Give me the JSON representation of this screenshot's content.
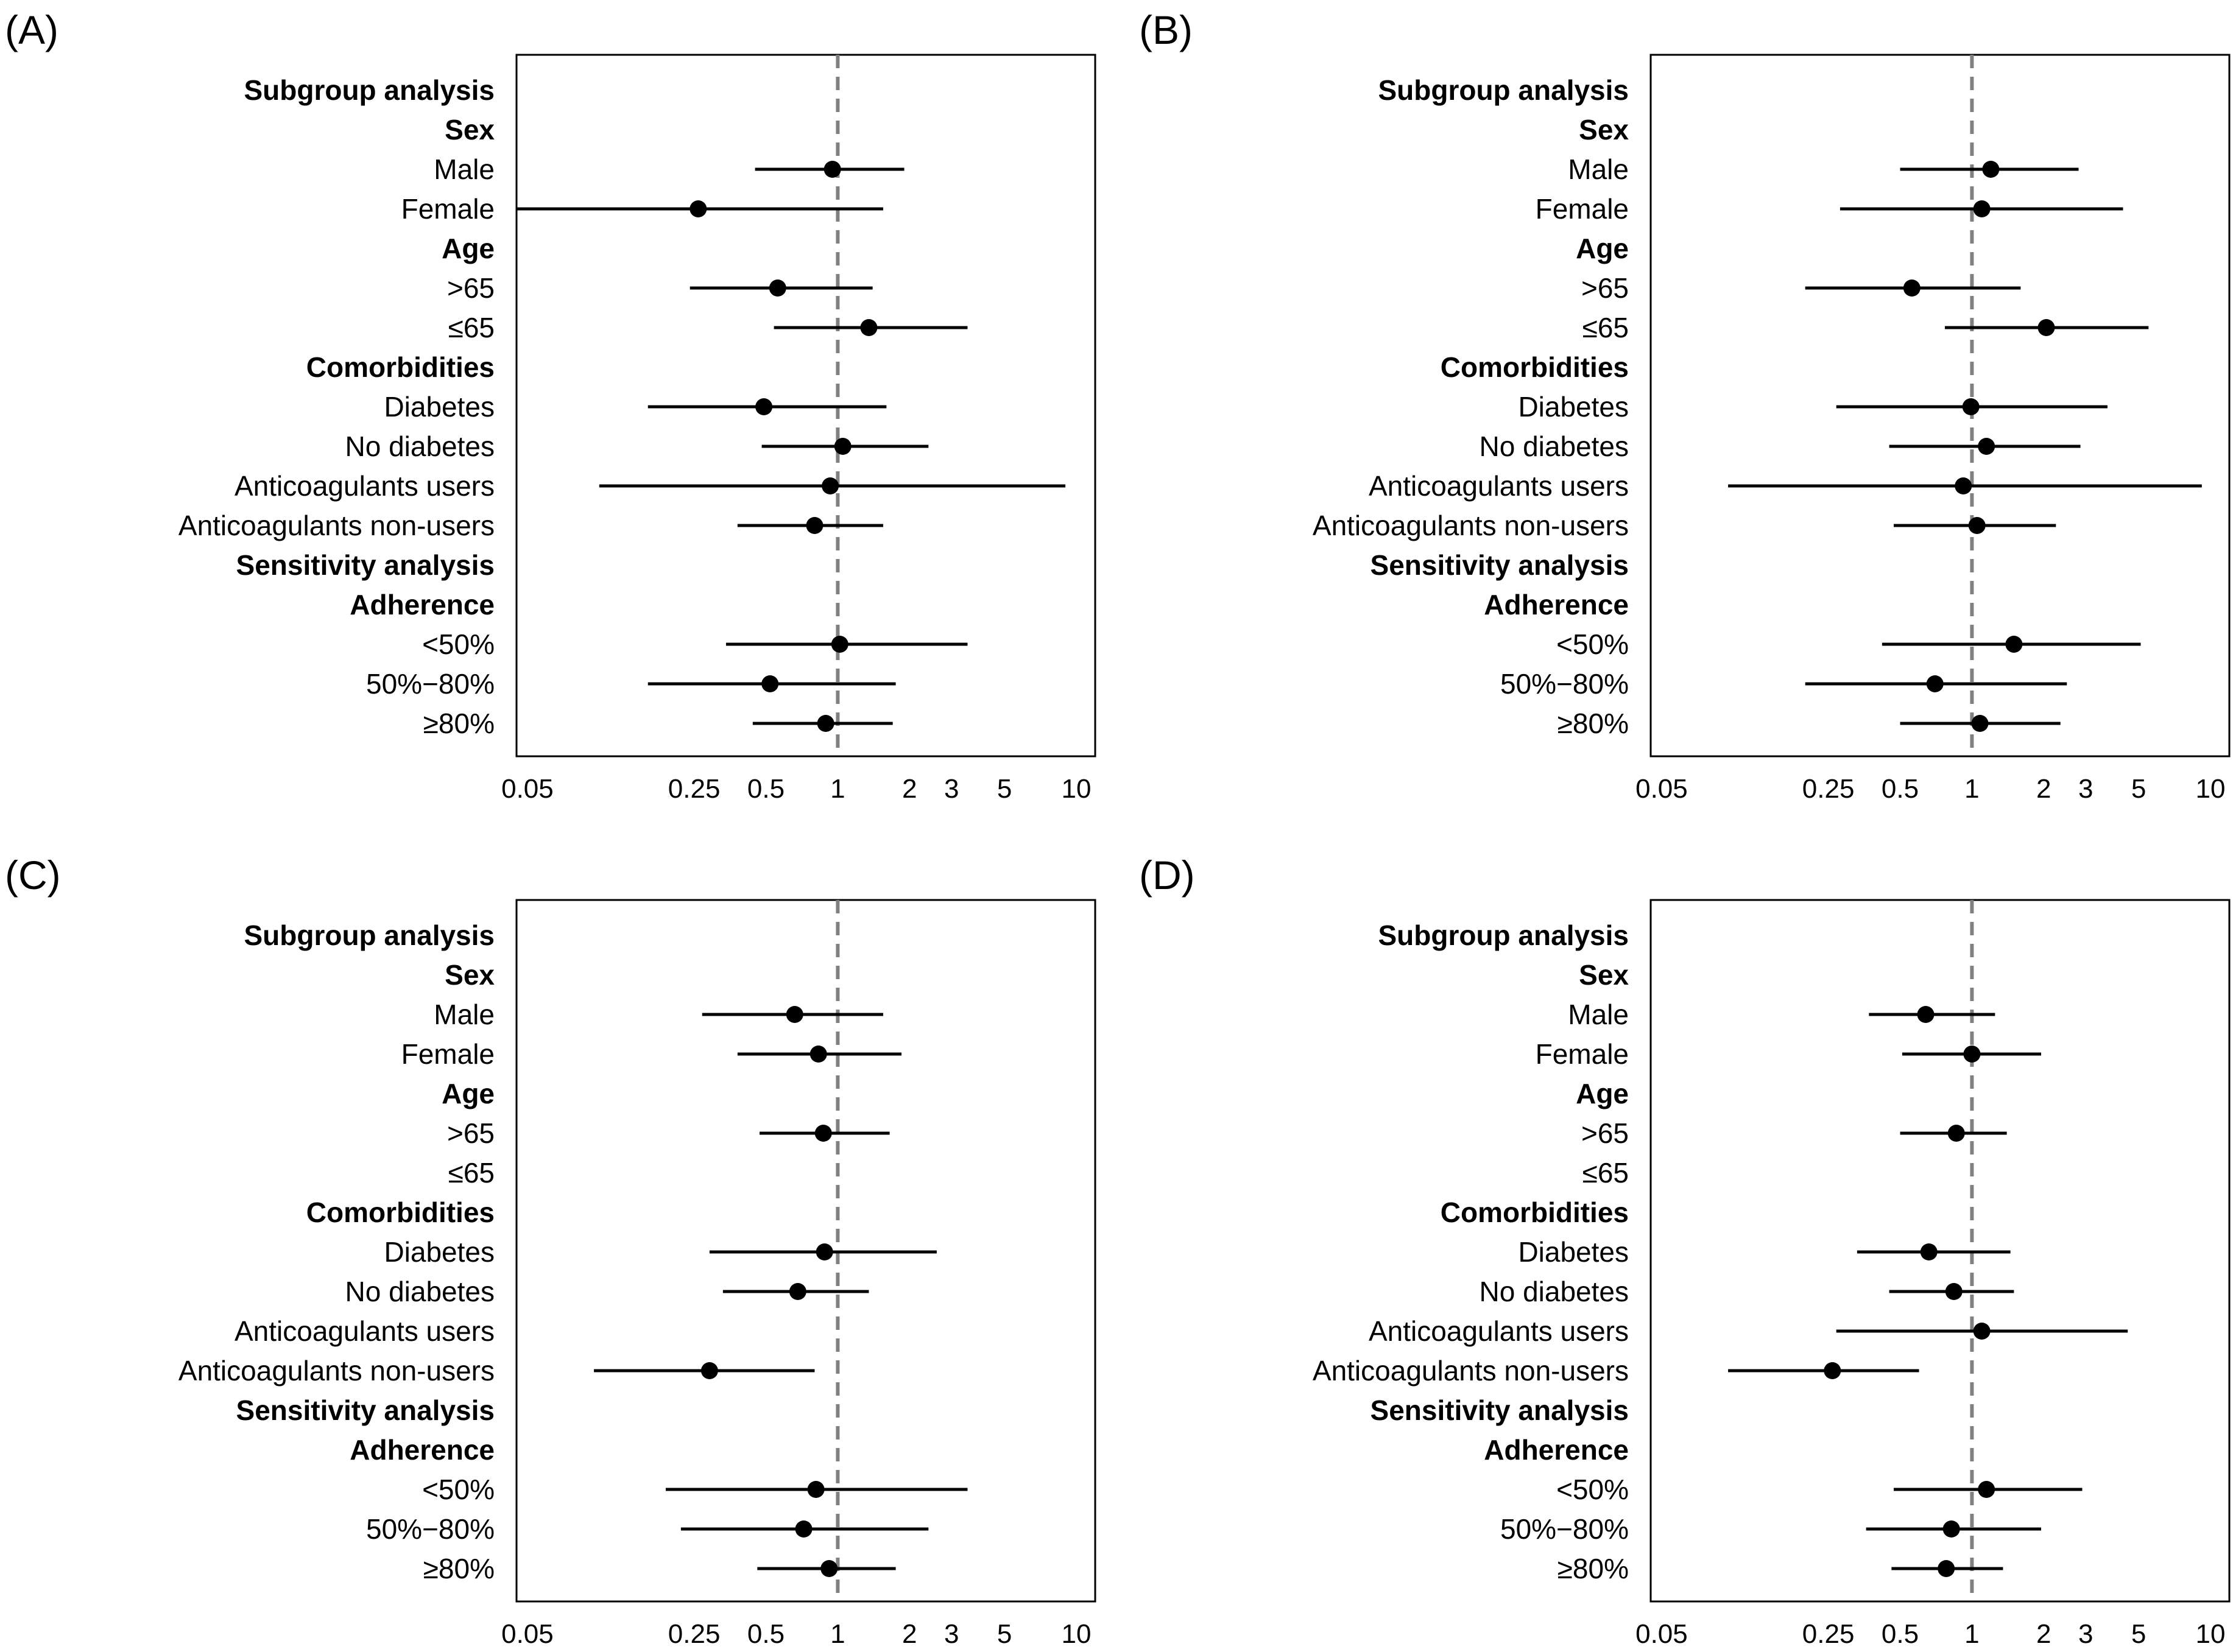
{
  "figure": {
    "row_labels": [
      {
        "text": "Subgroup analysis",
        "bold": true
      },
      {
        "text": "Sex",
        "bold": true
      },
      {
        "text": "Male",
        "bold": false
      },
      {
        "text": "Female",
        "bold": false
      },
      {
        "text": "Age",
        "bold": true
      },
      {
        "text": ">65",
        "bold": false
      },
      {
        "text": "≤65",
        "bold": false
      },
      {
        "text": "Comorbidities",
        "bold": true
      },
      {
        "text": "Diabetes",
        "bold": false
      },
      {
        "text": "No diabetes",
        "bold": false
      },
      {
        "text": "Anticoagulants users",
        "bold": false
      },
      {
        "text": "Anticoagulants non-users",
        "bold": false
      },
      {
        "text": "Sensitivity analysis",
        "bold": true
      },
      {
        "text": "Adherence",
        "bold": true
      },
      {
        "text": "<50%",
        "bold": false
      },
      {
        "text": "50%−80%",
        "bold": false
      },
      {
        "text": "≥80%",
        "bold": false
      }
    ],
    "x_ticks": [
      {
        "value": 0.05,
        "label": "0.05"
      },
      {
        "value": 0.25,
        "label": "0.25"
      },
      {
        "value": 0.5,
        "label": "0.5"
      },
      {
        "value": 1,
        "label": "1"
      },
      {
        "value": 2,
        "label": "2"
      },
      {
        "value": 3,
        "label": "3"
      },
      {
        "value": 5,
        "label": "5"
      },
      {
        "value": 10,
        "label": "10"
      }
    ],
    "colors": {
      "marker": "#000000",
      "ref_line": "#808080",
      "frame": "#000000"
    }
  },
  "chart_data": [
    {
      "type": "forest",
      "panel": "(A)",
      "xscale": "log",
      "xlim": [
        0.045,
        12
      ],
      "reference": 1,
      "points": [
        {
          "row": 2,
          "est": 0.95,
          "lo": 0.45,
          "hi": 1.9
        },
        {
          "row": 3,
          "est": 0.26,
          "lo": 0.045,
          "hi": 1.55
        },
        {
          "row": 5,
          "est": 0.56,
          "lo": 0.24,
          "hi": 1.4
        },
        {
          "row": 6,
          "est": 1.35,
          "lo": 0.54,
          "hi": 3.5
        },
        {
          "row": 8,
          "est": 0.49,
          "lo": 0.16,
          "hi": 1.6
        },
        {
          "row": 9,
          "est": 1.05,
          "lo": 0.48,
          "hi": 2.4
        },
        {
          "row": 10,
          "est": 0.93,
          "lo": 0.1,
          "hi": 9.0
        },
        {
          "row": 11,
          "est": 0.8,
          "lo": 0.38,
          "hi": 1.55
        },
        {
          "row": 14,
          "est": 1.02,
          "lo": 0.34,
          "hi": 3.5
        },
        {
          "row": 15,
          "est": 0.52,
          "lo": 0.16,
          "hi": 1.75
        },
        {
          "row": 16,
          "est": 0.89,
          "lo": 0.44,
          "hi": 1.7
        }
      ]
    },
    {
      "type": "forest",
      "panel": "(B)",
      "xscale": "log",
      "xlim": [
        0.045,
        12
      ],
      "reference": 1,
      "points": [
        {
          "row": 2,
          "est": 1.2,
          "lo": 0.5,
          "hi": 2.8
        },
        {
          "row": 3,
          "est": 1.1,
          "lo": 0.28,
          "hi": 4.3
        },
        {
          "row": 5,
          "est": 0.56,
          "lo": 0.2,
          "hi": 1.6
        },
        {
          "row": 6,
          "est": 2.05,
          "lo": 0.77,
          "hi": 5.5
        },
        {
          "row": 8,
          "est": 0.99,
          "lo": 0.27,
          "hi": 3.7
        },
        {
          "row": 9,
          "est": 1.15,
          "lo": 0.45,
          "hi": 2.85
        },
        {
          "row": 10,
          "est": 0.92,
          "lo": 0.095,
          "hi": 9.2
        },
        {
          "row": 11,
          "est": 1.05,
          "lo": 0.47,
          "hi": 2.25
        },
        {
          "row": 14,
          "est": 1.5,
          "lo": 0.42,
          "hi": 5.1
        },
        {
          "row": 15,
          "est": 0.7,
          "lo": 0.2,
          "hi": 2.5
        },
        {
          "row": 16,
          "est": 1.08,
          "lo": 0.5,
          "hi": 2.35
        }
      ]
    },
    {
      "type": "forest",
      "panel": "(C)",
      "xscale": "log",
      "xlim": [
        0.045,
        12
      ],
      "reference": 1,
      "points": [
        {
          "row": 2,
          "est": 0.66,
          "lo": 0.27,
          "hi": 1.55
        },
        {
          "row": 3,
          "est": 0.83,
          "lo": 0.38,
          "hi": 1.85
        },
        {
          "row": 5,
          "est": 0.87,
          "lo": 0.47,
          "hi": 1.65
        },
        {
          "row": 6,
          "est": null,
          "lo": null,
          "hi": null
        },
        {
          "row": 8,
          "est": 0.88,
          "lo": 0.29,
          "hi": 2.6
        },
        {
          "row": 9,
          "est": 0.68,
          "lo": 0.33,
          "hi": 1.35
        },
        {
          "row": 10,
          "est": null,
          "lo": null,
          "hi": null
        },
        {
          "row": 11,
          "est": 0.29,
          "lo": 0.095,
          "hi": 0.8
        },
        {
          "row": 14,
          "est": 0.81,
          "lo": 0.19,
          "hi": 3.5
        },
        {
          "row": 15,
          "est": 0.72,
          "lo": 0.22,
          "hi": 2.4
        },
        {
          "row": 16,
          "est": 0.92,
          "lo": 0.46,
          "hi": 1.75
        }
      ]
    },
    {
      "type": "forest",
      "panel": "(D)",
      "xscale": "log",
      "xlim": [
        0.045,
        12
      ],
      "reference": 1,
      "points": [
        {
          "row": 2,
          "est": 0.64,
          "lo": 0.37,
          "hi": 1.25
        },
        {
          "row": 3,
          "est": 1.0,
          "lo": 0.51,
          "hi": 1.95
        },
        {
          "row": 5,
          "est": 0.86,
          "lo": 0.5,
          "hi": 1.4
        },
        {
          "row": 6,
          "est": null,
          "lo": null,
          "hi": null
        },
        {
          "row": 8,
          "est": 0.66,
          "lo": 0.33,
          "hi": 1.45
        },
        {
          "row": 9,
          "est": 0.84,
          "lo": 0.45,
          "hi": 1.5
        },
        {
          "row": 10,
          "est": 1.1,
          "lo": 0.27,
          "hi": 4.5
        },
        {
          "row": 11,
          "est": 0.26,
          "lo": 0.095,
          "hi": 0.6
        },
        {
          "row": 14,
          "est": 1.15,
          "lo": 0.47,
          "hi": 2.9
        },
        {
          "row": 15,
          "est": 0.82,
          "lo": 0.36,
          "hi": 1.95
        },
        {
          "row": 16,
          "est": 0.78,
          "lo": 0.46,
          "hi": 1.35
        }
      ]
    }
  ]
}
